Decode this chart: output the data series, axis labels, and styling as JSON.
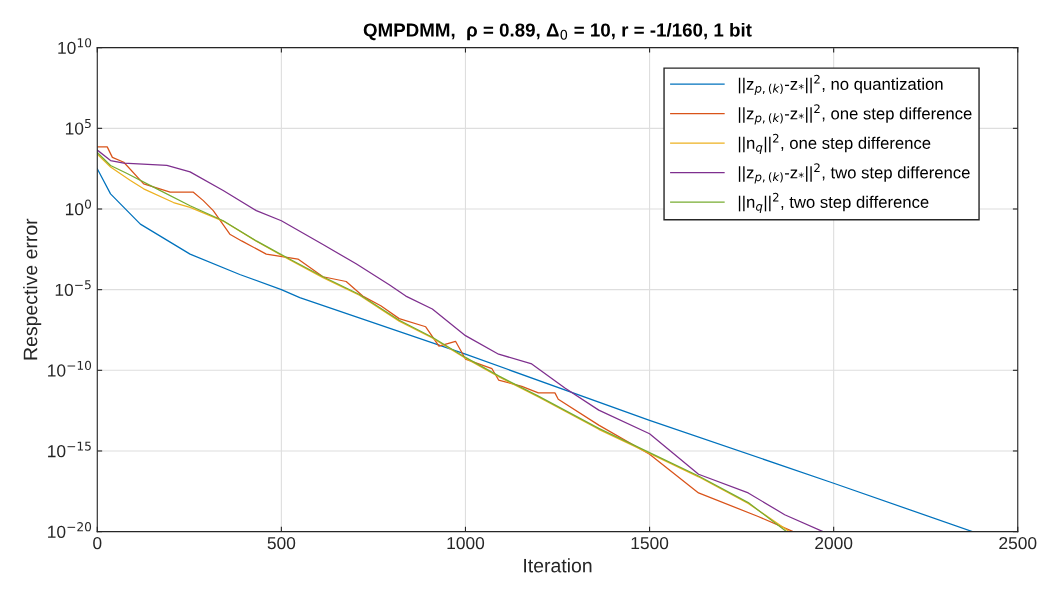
{
  "chart_data": {
    "type": "line",
    "title": "QMPDMM,  ρ = 0.89, Δ$_{0}$ = 10, r = -1/160, 1 bit",
    "xlabel": "Iteration",
    "ylabel": "Respective error",
    "log": "y",
    "grid": true,
    "legend": "top right",
    "marker": "none",
    "line_style": "solid",
    "xlim": [
      0,
      2500
    ],
    "xticks": [
      0,
      500,
      1000,
      1500,
      2000,
      2500
    ],
    "ylim": [
      1e-20,
      10000000000.0
    ],
    "yticks": [
      {
        "value": 1e-20,
        "label": "10$^{−20}$"
      },
      {
        "value": 1e-15,
        "label": "10$^{−15}$"
      },
      {
        "value": 1e-10,
        "label": "10$^{−10}$"
      },
      {
        "value": 1e-05,
        "label": "10$^{−5}$"
      },
      {
        "value": 1,
        "label": "10$^{0}$"
      },
      {
        "value": 100000.0,
        "label": "10$^{5}$"
      },
      {
        "value": 10000000000.0,
        "label": "10$^{10}$"
      }
    ],
    "series": [
      {
        "name": "||z$_{p,(k)}$-z$_{*}$||$^{2}$, no quantization",
        "color": "#0072bd",
        "x": [
          0,
          36,
          117,
          252,
          387,
          500,
          550,
          1000,
          1500,
          2000,
          2377
        ],
        "values": [
          316,
          8.7,
          0.115,
          0.0016,
          8.7e-05,
          1e-05,
          3.2e-06,
          1e-09,
          7.9e-14,
          1e-17,
          1e-20
        ]
      },
      {
        "name": "||z$_{p,(k)}$-z$_{*}$||$^{2}$, one step difference",
        "color": "#d95319",
        "x": [
          0,
          27,
          41,
          72,
          126,
          198,
          261,
          288,
          315,
          360,
          392,
          459,
          545,
          613,
          676,
          721,
          770,
          820,
          892,
          928,
          973,
          1000,
          1072,
          1090,
          1153,
          1198,
          1243,
          1252,
          1362,
          1500,
          1633,
          1795,
          1890
        ],
        "values": [
          7080,
          7080,
          1580,
          794,
          36.3,
          11,
          11,
          3.3,
          0.794,
          0.0275,
          0.0105,
          0.0016,
          0.00079,
          6.3e-05,
          3.2e-05,
          4e-06,
          1e-06,
          1.6e-07,
          5e-08,
          3.2e-09,
          6.3e-09,
          5e-10,
          1.26e-10,
          2.5e-11,
          1e-11,
          4e-12,
          4e-12,
          1.6e-12,
          4e-14,
          6.3e-16,
          2.5e-18,
          8.7e-20,
          1e-20
        ]
      },
      {
        "name": "||n$_{q}$||$^{2}$, one step difference",
        "color": "#edb120",
        "x": [
          0,
          36,
          90,
          126,
          207,
          252,
          342,
          432,
          522,
          613,
          712,
          820,
          910,
          1000,
          1090,
          1198,
          1362,
          1500,
          1633,
          1768,
          1880
        ],
        "values": [
          2510,
          398,
          58.9,
          17.8,
          2.51,
          1.26,
          0.178,
          0.01,
          0.00071,
          5.6e-05,
          4.5e-06,
          1.12e-07,
          1e-08,
          5.6e-10,
          4e-11,
          2.2e-12,
          2.2e-14,
          7.1e-16,
          2.5e-17,
          5.6e-19,
          1e-20
        ]
      },
      {
        "name": "||z$_{p,(k)}$-z$_{*}$||$^{2}$, two step difference",
        "color": "#7e2f8e",
        "x": [
          0,
          36,
          72,
          189,
          252,
          342,
          432,
          500,
          613,
          703,
          793,
          838,
          910,
          1000,
          1090,
          1180,
          1270,
          1362,
          1500,
          1633,
          1768,
          1867,
          1971
        ],
        "values": [
          4470,
          1000,
          708,
          501,
          200,
          14.1,
          0.794,
          0.186,
          0.0063,
          0.0004,
          2e-05,
          4e-06,
          6.3e-07,
          1.41e-08,
          1e-09,
          2.5e-10,
          7.9e-12,
          3.4e-13,
          1.17e-14,
          3.6e-17,
          2.5e-18,
          1.12e-19,
          1e-20
        ]
      },
      {
        "name": "||n$_{q}$||$^{2}$, two step difference",
        "color": "#77ac30",
        "x": [
          0,
          36,
          81,
          162,
          252,
          342,
          432,
          522,
          613,
          712,
          820,
          910,
          1000,
          1090,
          1198,
          1362,
          1500,
          1633,
          1768,
          1872
        ],
        "values": [
          3160,
          501,
          158,
          17.8,
          1.58,
          0.186,
          0.0105,
          0.00079,
          6.3e-05,
          5e-06,
          1.26e-07,
          1.12e-08,
          6.3e-10,
          4.5e-11,
          2.5e-12,
          2.5e-14,
          7.9e-16,
          2.8e-17,
          6.3e-19,
          1e-20
        ]
      }
    ]
  }
}
